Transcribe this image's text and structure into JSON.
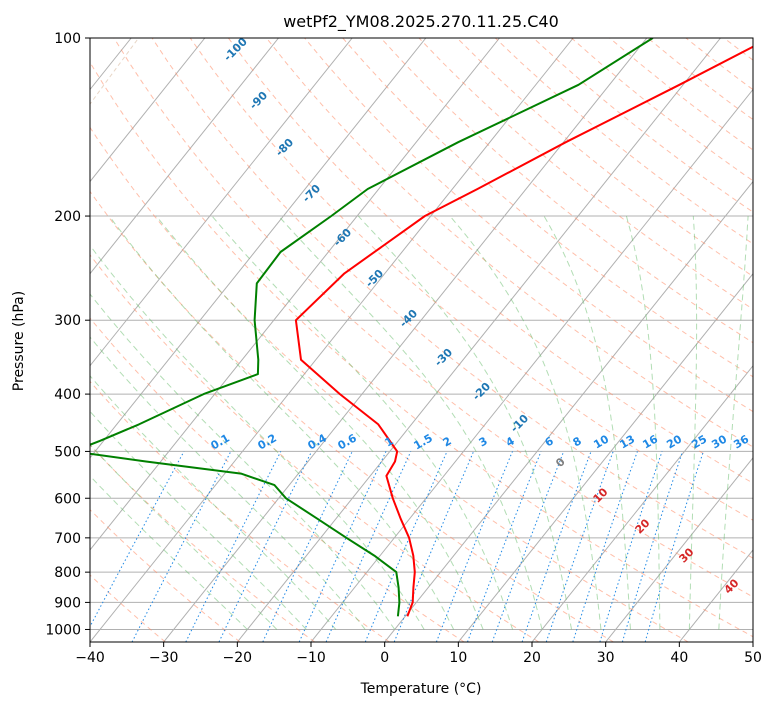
{
  "chart_data": {
    "type": "line",
    "title": "wetPf2_YM08.2025.270.11.25.C40",
    "xlabel": "Temperature (°C)",
    "ylabel": "Pressure (hPa)",
    "xlim": [
      -40,
      50
    ],
    "ylim": [
      1050,
      100
    ],
    "y_scale": "log",
    "grid": true,
    "x_ticks": [
      -40,
      -30,
      -20,
      -10,
      0,
      10,
      20,
      30,
      40,
      50
    ],
    "y_ticks": [
      1000,
      900,
      800,
      700,
      600,
      500,
      400,
      300,
      200,
      100
    ],
    "series": [
      {
        "color": "#ff0000",
        "points": [
          [
            100,
            -13.3
          ],
          [
            120,
            -20.5
          ],
          [
            150,
            -29.7
          ],
          [
            180,
            -36.6
          ],
          [
            200,
            -40.8
          ],
          [
            250,
            -45.5
          ],
          [
            300,
            -47.0
          ],
          [
            350,
            -42.0
          ],
          [
            400,
            -33.0
          ],
          [
            450,
            -24.5
          ],
          [
            500,
            -19.0
          ],
          [
            520,
            -18.2
          ],
          [
            550,
            -17.8
          ],
          [
            600,
            -14.5
          ],
          [
            650,
            -11.2
          ],
          [
            700,
            -8.0
          ],
          [
            750,
            -5.5
          ],
          [
            800,
            -3.5
          ],
          [
            850,
            -2.0
          ],
          [
            900,
            -0.5
          ],
          [
            950,
            0.3
          ]
        ]
      },
      {
        "color": "#008000",
        "points": [
          [
            100,
            -29.2
          ],
          [
            120,
            -34.2
          ],
          [
            150,
            -44.3
          ],
          [
            180,
            -51.5
          ],
          [
            200,
            -53.5
          ],
          [
            230,
            -56.5
          ],
          [
            260,
            -56.3
          ],
          [
            300,
            -52.6
          ],
          [
            350,
            -47.8
          ],
          [
            370,
            -46.3
          ],
          [
            400,
            -51.5
          ],
          [
            450,
            -57.0
          ],
          [
            480,
            -60.5
          ],
          [
            500,
            -63.0
          ],
          [
            520,
            -52.0
          ],
          [
            545,
            -37.8
          ],
          [
            570,
            -32.0
          ],
          [
            600,
            -29.0
          ],
          [
            650,
            -22.5
          ],
          [
            700,
            -16.5
          ],
          [
            750,
            -10.8
          ],
          [
            800,
            -6.0
          ],
          [
            850,
            -4.0
          ],
          [
            900,
            -2.3
          ],
          [
            950,
            -1.0
          ]
        ]
      }
    ],
    "isotherm_labels": [
      "-100",
      "-90",
      "-80",
      "-70",
      "-60",
      "-50",
      "-40",
      "-30",
      "-20",
      "-10"
    ],
    "mixing_ratio_labels": [
      "0.1",
      "0.2",
      "0.4",
      "0.6",
      "1",
      "1.5",
      "2",
      "3",
      "4",
      "6",
      "8",
      "10",
      "13",
      "16",
      "20",
      "25",
      "30",
      "36"
    ],
    "temperature_labels": [
      "0",
      "10",
      "20",
      "30",
      "40"
    ],
    "colors": {
      "temperature_line": "#ff0000",
      "dewpoint_line": "#008000",
      "isotherm_label": "#1f77b4",
      "mixing_ratio": "#1e88e5",
      "dry_adiabat": "#ff8a65",
      "moist_adiabat": "#66bb6a",
      "positive_temp_label": "#d62728",
      "zero_label": "#7f7f7f"
    }
  }
}
